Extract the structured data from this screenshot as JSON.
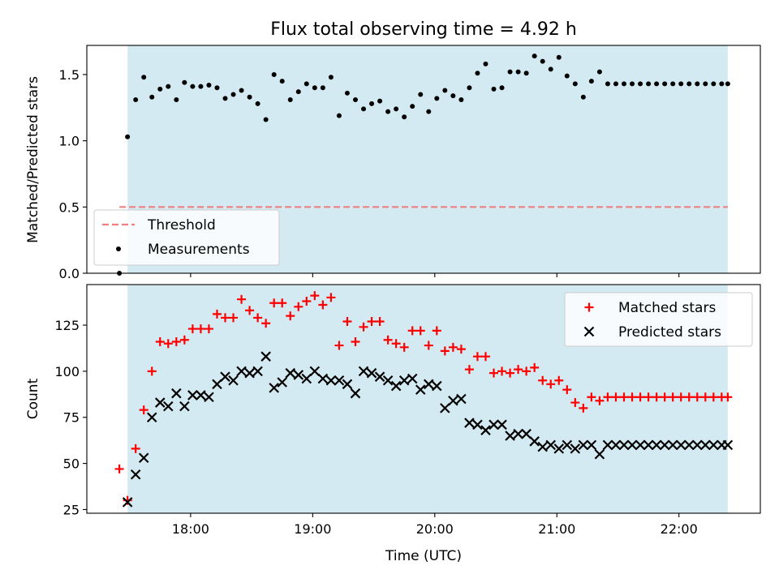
{
  "chart_data": [
    {
      "type": "scatter",
      "title": "Flux total observing time = 4.92 h",
      "xlabel": "",
      "ylabel": "Matched/Predicted stars",
      "ylim": [
        0,
        1.72
      ],
      "xlim": [
        "17:09",
        "22:40"
      ],
      "yticks": [
        0.0,
        0.5,
        1.0,
        1.5
      ],
      "ytick_labels": [
        "0.0",
        "0.5",
        "1.0",
        "1.5"
      ],
      "xticks": [
        "18:00",
        "19:00",
        "20:00",
        "21:00",
        "22:00"
      ],
      "shaded_interval": [
        "17:29",
        "22:24"
      ],
      "threshold": {
        "name": "Threshold",
        "value": 0.5,
        "x_range": [
          "17:25",
          "22:24"
        ],
        "color": "#f08080"
      },
      "legend": {
        "placement": "lower-left",
        "entries": [
          "Threshold",
          "Measurements"
        ]
      },
      "series": [
        {
          "name": "Measurements",
          "color": "#000000",
          "marker": "dot",
          "x": [
            "17:25",
            "17:29",
            "17:33",
            "17:37",
            "17:41",
            "17:45",
            "17:49",
            "17:53",
            "17:57",
            "18:01",
            "18:05",
            "18:09",
            "18:13",
            "18:17",
            "18:21",
            "18:25",
            "18:29",
            "18:33",
            "18:37",
            "18:41",
            "18:45",
            "18:49",
            "18:53",
            "18:57",
            "19:01",
            "19:05",
            "19:09",
            "19:13",
            "19:17",
            "19:21",
            "19:25",
            "19:29",
            "19:33",
            "19:37",
            "19:41",
            "19:45",
            "19:49",
            "19:53",
            "19:57",
            "20:01",
            "20:05",
            "20:09",
            "20:13",
            "20:17",
            "20:21",
            "20:25",
            "20:29",
            "20:33",
            "20:37",
            "20:41",
            "20:45",
            "20:49",
            "20:53",
            "20:57",
            "21:01",
            "21:05",
            "21:09",
            "21:13",
            "21:17",
            "21:21",
            "21:25",
            "21:29",
            "21:33",
            "21:37",
            "21:41",
            "21:45",
            "21:49",
            "21:53",
            "21:57",
            "22:01",
            "22:05",
            "22:09",
            "22:13",
            "22:17",
            "22:21",
            "22:24"
          ],
          "y": [
            0.0,
            1.03,
            1.31,
            1.48,
            1.33,
            1.39,
            1.41,
            1.31,
            1.44,
            1.41,
            1.41,
            1.42,
            1.4,
            1.32,
            1.35,
            1.38,
            1.33,
            1.28,
            1.16,
            1.5,
            1.45,
            1.31,
            1.37,
            1.43,
            1.4,
            1.4,
            1.48,
            1.19,
            1.36,
            1.31,
            1.24,
            1.28,
            1.3,
            1.22,
            1.24,
            1.18,
            1.26,
            1.35,
            1.22,
            1.32,
            1.38,
            1.34,
            1.31,
            1.4,
            1.51,
            1.58,
            1.39,
            1.4,
            1.52,
            1.52,
            1.51,
            1.64,
            1.6,
            1.54,
            1.63,
            1.49,
            1.43,
            1.33,
            1.45,
            1.52,
            1.43,
            1.43,
            1.43,
            1.43,
            1.43,
            1.43,
            1.43,
            1.43,
            1.43,
            1.43,
            1.43,
            1.43,
            1.43,
            1.43,
            1.43,
            1.43
          ]
        }
      ]
    },
    {
      "type": "scatter",
      "title": "",
      "xlabel": "Time (UTC)",
      "ylabel": "Count",
      "ylim": [
        23,
        147
      ],
      "xlim": [
        "17:09",
        "22:40"
      ],
      "yticks": [
        25,
        50,
        75,
        100,
        125
      ],
      "ytick_labels": [
        "25",
        "50",
        "75",
        "100",
        "125"
      ],
      "xticks": [
        "18:00",
        "19:00",
        "20:00",
        "21:00",
        "22:00"
      ],
      "xtick_labels": [
        "18:00",
        "19:00",
        "20:00",
        "21:00",
        "22:00"
      ],
      "shaded_interval": [
        "17:29",
        "22:24"
      ],
      "legend": {
        "placement": "top-right",
        "entries": [
          "Matched stars",
          "Predicted stars"
        ]
      },
      "series": [
        {
          "name": "Matched stars",
          "color": "#ff0000",
          "marker": "plus",
          "x": [
            "17:25",
            "17:29",
            "17:33",
            "17:37",
            "17:41",
            "17:45",
            "17:49",
            "17:53",
            "17:57",
            "18:01",
            "18:05",
            "18:09",
            "18:13",
            "18:17",
            "18:21",
            "18:25",
            "18:29",
            "18:33",
            "18:37",
            "18:41",
            "18:45",
            "18:49",
            "18:53",
            "18:57",
            "19:01",
            "19:05",
            "19:09",
            "19:13",
            "19:17",
            "19:21",
            "19:25",
            "19:29",
            "19:33",
            "19:37",
            "19:41",
            "19:45",
            "19:49",
            "19:53",
            "19:57",
            "20:01",
            "20:05",
            "20:09",
            "20:13",
            "20:17",
            "20:21",
            "20:25",
            "20:29",
            "20:33",
            "20:37",
            "20:41",
            "20:45",
            "20:49",
            "20:53",
            "20:57",
            "21:01",
            "21:05",
            "21:09",
            "21:13",
            "21:17",
            "21:21",
            "21:25",
            "21:29",
            "21:33",
            "21:37",
            "21:41",
            "21:45",
            "21:49",
            "21:53",
            "21:57",
            "22:01",
            "22:05",
            "22:09",
            "22:13",
            "22:17",
            "22:21",
            "22:24"
          ],
          "y": [
            47,
            30,
            58,
            79,
            100,
            116,
            115,
            116,
            117,
            123,
            123,
            123,
            131,
            129,
            129,
            139,
            133,
            129,
            126,
            137,
            137,
            130,
            135,
            138,
            141,
            136,
            140,
            114,
            127,
            116,
            124,
            127,
            127,
            117,
            115,
            113,
            122,
            122,
            114,
            122,
            111,
            113,
            112,
            101,
            108,
            108,
            99,
            100,
            99,
            101,
            100,
            102,
            95,
            93,
            95,
            90,
            83,
            80,
            86,
            84,
            86,
            86,
            86,
            86,
            86,
            86,
            86,
            86,
            86,
            86,
            86,
            86,
            86,
            86,
            86,
            86
          ]
        },
        {
          "name": "Predicted stars",
          "color": "#000000",
          "marker": "x",
          "x": [
            "17:29",
            "17:33",
            "17:37",
            "17:41",
            "17:45",
            "17:49",
            "17:53",
            "17:57",
            "18:01",
            "18:05",
            "18:09",
            "18:13",
            "18:17",
            "18:21",
            "18:25",
            "18:29",
            "18:33",
            "18:37",
            "18:41",
            "18:45",
            "18:49",
            "18:53",
            "18:57",
            "19:01",
            "19:05",
            "19:09",
            "19:13",
            "19:17",
            "19:21",
            "19:25",
            "19:29",
            "19:33",
            "19:37",
            "19:41",
            "19:45",
            "19:49",
            "19:53",
            "19:57",
            "20:01",
            "20:05",
            "20:09",
            "20:13",
            "20:17",
            "20:21",
            "20:25",
            "20:29",
            "20:33",
            "20:37",
            "20:41",
            "20:45",
            "20:49",
            "20:53",
            "20:57",
            "21:01",
            "21:05",
            "21:09",
            "21:13",
            "21:17",
            "21:21",
            "21:25",
            "21:29",
            "21:33",
            "21:37",
            "21:41",
            "21:45",
            "21:49",
            "21:53",
            "21:57",
            "22:01",
            "22:05",
            "22:09",
            "22:13",
            "22:17",
            "22:21",
            "22:24"
          ],
          "y": [
            29,
            44,
            53,
            75,
            83,
            81,
            88,
            81,
            87,
            87,
            86,
            93,
            97,
            95,
            100,
            99,
            100,
            108,
            91,
            94,
            99,
            98,
            96,
            100,
            96,
            95,
            95,
            93,
            88,
            100,
            99,
            97,
            95,
            92,
            95,
            96,
            90,
            93,
            92,
            80,
            84,
            85,
            72,
            71,
            68,
            71,
            71,
            65,
            66,
            66,
            62,
            59,
            60,
            58,
            60,
            58,
            60,
            60,
            55,
            60,
            60,
            60,
            60,
            60,
            60,
            60,
            60,
            60,
            60,
            60,
            60,
            60,
            60,
            60,
            60
          ]
        }
      ]
    }
  ]
}
